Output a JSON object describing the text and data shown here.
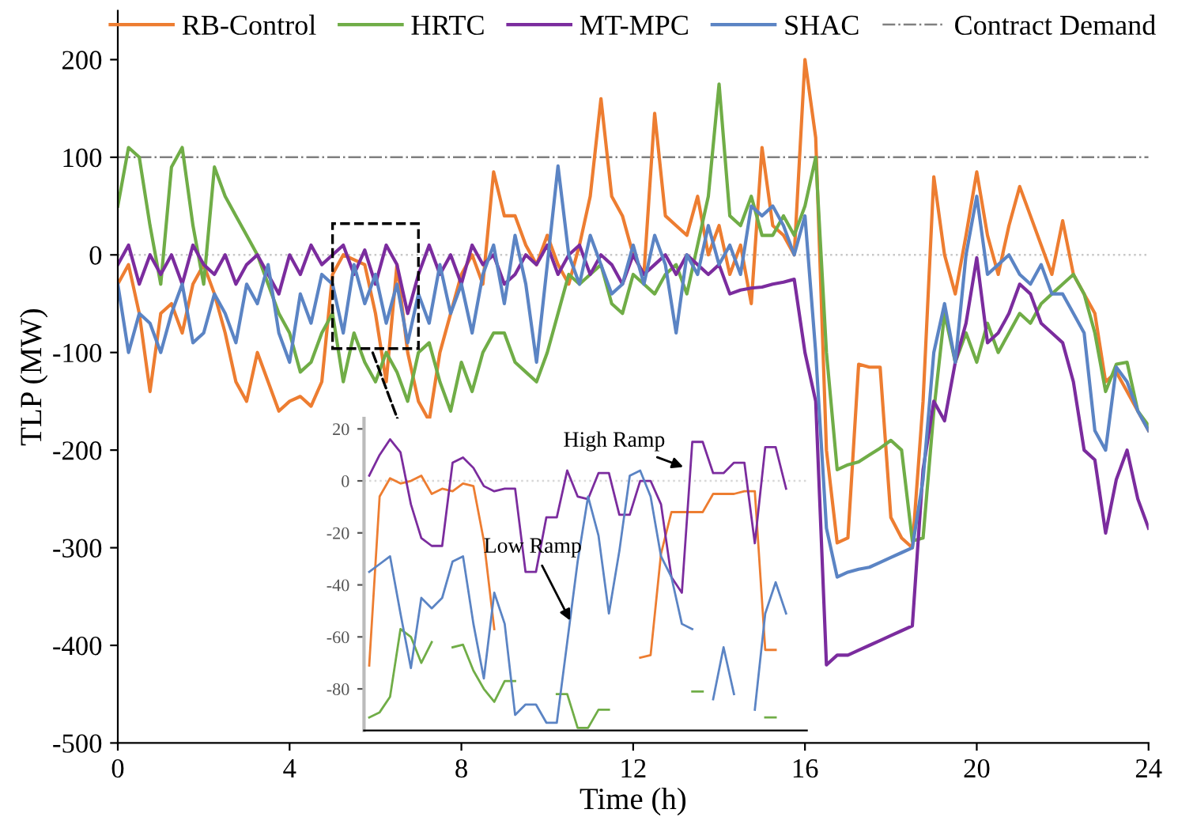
{
  "chart_data": [
    {
      "type": "line",
      "xlabel": "Time (h)",
      "ylabel": "TLP (MW)",
      "x": [
        0,
        0.25,
        0.5,
        0.75,
        1,
        1.25,
        1.5,
        1.75,
        2,
        2.25,
        2.5,
        2.75,
        3,
        3.25,
        3.5,
        3.75,
        4,
        4.25,
        4.5,
        4.75,
        5,
        5.25,
        5.5,
        5.75,
        6,
        6.25,
        6.5,
        6.75,
        7,
        7.25,
        7.5,
        7.75,
        8,
        8.25,
        8.5,
        8.75,
        9,
        9.25,
        9.5,
        9.75,
        10,
        10.25,
        10.5,
        10.75,
        11,
        11.25,
        11.5,
        11.75,
        12,
        12.25,
        12.5,
        12.75,
        13,
        13.25,
        13.5,
        13.75,
        14,
        14.25,
        14.5,
        14.75,
        15,
        15.25,
        15.5,
        15.75,
        16,
        16.25,
        16.5,
        16.75,
        17,
        17.25,
        17.5,
        17.75,
        18,
        18.25,
        18.5,
        18.75,
        19,
        19.25,
        19.5,
        19.75,
        20,
        20.25,
        20.5,
        20.75,
        21,
        21.25,
        21.5,
        21.75,
        22,
        22.25,
        22.5,
        22.75,
        23,
        23.25,
        23.5,
        23.75,
        24
      ],
      "series": [
        {
          "name": "RB-Control",
          "color": "#ed7d31",
          "values": [
            -30,
            -10,
            -60,
            -140,
            -60,
            -50,
            -80,
            -30,
            -10,
            -40,
            -80,
            -130,
            -150,
            -100,
            -130,
            -160,
            -150,
            -145,
            -155,
            -130,
            -20,
            0,
            -5,
            -10,
            -60,
            -130,
            -10,
            -100,
            -150,
            -170,
            -100,
            -60,
            -20,
            0,
            -30,
            85,
            40,
            40,
            10,
            -10,
            20,
            -10,
            -30,
            10,
            60,
            160,
            60,
            40,
            0,
            -20,
            145,
            40,
            30,
            20,
            60,
            0,
            30,
            -20,
            10,
            -50,
            110,
            30,
            20,
            0,
            200,
            120,
            -200,
            -295,
            -290,
            -112,
            -115,
            -115,
            -269,
            -290,
            -300,
            -150,
            80,
            0,
            -40,
            20,
            85,
            20,
            -20,
            30,
            70,
            40,
            10,
            -20,
            35,
            -20,
            -40,
            -60,
            -130,
            -120,
            -140,
            -160,
            -180
          ]
        },
        {
          "name": "HRTC",
          "color": "#70ad47",
          "values": [
            50,
            110,
            100,
            30,
            -30,
            90,
            110,
            30,
            -30,
            90,
            60,
            40,
            20,
            0,
            -30,
            -60,
            -80,
            -120,
            -110,
            -80,
            -60,
            -130,
            -80,
            -110,
            -130,
            -100,
            -120,
            -150,
            -100,
            -90,
            -130,
            -160,
            -110,
            -140,
            -100,
            -80,
            -80,
            -110,
            -120,
            -130,
            -100,
            -60,
            -20,
            -30,
            -20,
            -10,
            -50,
            -60,
            -20,
            -30,
            -40,
            -20,
            -10,
            -40,
            10,
            60,
            175,
            40,
            30,
            60,
            20,
            20,
            40,
            20,
            50,
            100,
            -100,
            -220,
            -215,
            -212,
            -205,
            -198,
            -190,
            -200,
            -293,
            -290,
            -160,
            -60,
            -110,
            -80,
            -110,
            -70,
            -100,
            -80,
            -60,
            -70,
            -50,
            -40,
            -30,
            -20,
            -40,
            -80,
            -140,
            -112,
            -110,
            -160,
            -175
          ]
        },
        {
          "name": "MT-MPC",
          "color": "#7b2c9e",
          "values": [
            -10,
            10,
            -30,
            0,
            -20,
            0,
            -30,
            10,
            -10,
            -20,
            0,
            -30,
            -10,
            0,
            -20,
            -40,
            0,
            -20,
            10,
            -10,
            0,
            10,
            -20,
            5,
            -30,
            10,
            -10,
            -60,
            -20,
            10,
            -20,
            0,
            -30,
            10,
            -10,
            0,
            -30,
            -20,
            0,
            -10,
            10,
            -20,
            0,
            10,
            -20,
            0,
            -10,
            -30,
            0,
            -20,
            -10,
            0,
            -20,
            0,
            -10,
            -20,
            -10,
            -40,
            -36,
            -34,
            -33,
            -30,
            -28,
            -25,
            -100,
            -150,
            -420,
            -410,
            -410,
            -405,
            -400,
            -395,
            -390,
            -385,
            -380,
            -220,
            -150,
            -170,
            -110,
            -70,
            -3,
            -90,
            -80,
            -60,
            -30,
            -40,
            -70,
            -80,
            -90,
            -130,
            -200,
            -210,
            -285,
            -230,
            -200,
            -250,
            -280
          ]
        },
        {
          "name": "SHAC",
          "color": "#5b84c4",
          "values": [
            -30,
            -100,
            -60,
            -70,
            -100,
            -60,
            -30,
            -90,
            -80,
            -40,
            -60,
            -90,
            -30,
            -50,
            -10,
            -80,
            -110,
            -40,
            -70,
            -20,
            -30,
            -80,
            -10,
            -50,
            -20,
            -70,
            -30,
            -90,
            -40,
            -70,
            -10,
            -60,
            -30,
            -80,
            -20,
            10,
            -50,
            20,
            -30,
            -110,
            -10,
            91,
            0,
            -30,
            20,
            -10,
            -40,
            -30,
            10,
            -30,
            20,
            -10,
            -80,
            0,
            -20,
            30,
            -10,
            10,
            -20,
            50,
            40,
            50,
            30,
            0,
            40,
            -100,
            -280,
            -330,
            -325,
            -322,
            -320,
            -315,
            -310,
            -305,
            -300,
            -230,
            -100,
            -50,
            -110,
            0,
            60,
            -20,
            -10,
            0,
            -20,
            -30,
            -10,
            -40,
            -40,
            -60,
            -80,
            -180,
            -200,
            -115,
            -130,
            -160,
            -180
          ]
        }
      ],
      "xlim": [
        0,
        24
      ],
      "xticks": [
        0,
        4,
        8,
        12,
        16,
        20,
        24
      ],
      "ylim": [
        -500,
        250
      ],
      "yticks": [
        -500,
        -400,
        -300,
        -200,
        -100,
        0,
        100,
        200
      ],
      "ref_lines": [
        {
          "axis": "y",
          "value": 100,
          "label": "Contract Demand",
          "color": "#808080",
          "line_style": "dashdot"
        },
        {
          "axis": "y",
          "value": 0,
          "color": "#c8c8c8",
          "line_style": "dotted"
        }
      ],
      "legend": "top",
      "grid": false
    },
    {
      "type": "line",
      "categories": [
        null,
        null,
        null,
        null,
        null,
        null,
        null,
        null,
        null,
        null,
        null,
        null,
        null,
        null,
        null,
        null,
        null,
        null,
        null,
        null,
        null,
        null,
        null,
        null,
        null,
        null,
        null,
        null,
        null,
        null,
        null,
        null,
        null,
        null,
        null,
        null,
        null,
        null,
        null,
        null,
        null
      ],
      "series": [
        {
          "color": "#ed7d31",
          "values": [
            -71,
            -6,
            1,
            -1,
            0,
            2,
            -5,
            -3,
            -4,
            -1,
            -2,
            -23,
            -57,
            null,
            null,
            null,
            null,
            null,
            null,
            null,
            null,
            null,
            null,
            null,
            null,
            null,
            -68,
            -67,
            -28,
            -12,
            -12,
            -12,
            -12,
            -5,
            -5,
            -5,
            -4,
            -4,
            -65,
            -65,
            null
          ]
        },
        {
          "color": "#70ad47",
          "values": [
            -91,
            -89,
            -83,
            -57,
            -60,
            -70,
            -62,
            null,
            -64,
            -63,
            -73,
            -80,
            -85,
            -77,
            -77,
            null,
            null,
            null,
            -82,
            -82,
            -95,
            -95,
            -88,
            -88,
            null,
            null,
            null,
            null,
            null,
            null,
            null,
            -81,
            -81,
            null,
            null,
            null,
            null,
            null,
            -91,
            -91,
            null
          ]
        },
        {
          "color": "#7b2c9e",
          "values": [
            2,
            10,
            16,
            11,
            -9,
            -22,
            -25,
            -25,
            7,
            9,
            5,
            -2,
            -4,
            -3,
            -3,
            -35,
            -35,
            -14,
            -14,
            4,
            -6,
            -7,
            3,
            3,
            -13,
            -13,
            0,
            0,
            -9,
            -37,
            -43,
            15,
            15,
            3,
            3,
            7,
            7,
            -24,
            13,
            13,
            -3
          ]
        },
        {
          "color": "#5b84c4",
          "values": [
            -35,
            -32,
            -29,
            -51,
            -72,
            -45,
            -49,
            -45,
            -31,
            -29,
            -55,
            -76,
            -43,
            -55,
            -90,
            -86,
            -86,
            -93,
            -93,
            -62,
            -31,
            -6,
            -21,
            -51,
            -27,
            2,
            4,
            -6,
            -29,
            -37,
            -55,
            -57,
            null,
            -84,
            -64,
            -82,
            null,
            -88,
            -51,
            -39,
            -51
          ]
        }
      ],
      "ylim": [
        -96,
        24
      ],
      "yticks": [
        -80,
        -60,
        -40,
        -20,
        0,
        20
      ],
      "ref_lines": [
        {
          "axis": "y",
          "value": 0,
          "color": "#d8d8d8",
          "line_style": "dotted"
        }
      ],
      "annotations": [
        "High Ramp",
        "Low Ramp"
      ],
      "tick_labels": "y",
      "grid": false
    }
  ]
}
